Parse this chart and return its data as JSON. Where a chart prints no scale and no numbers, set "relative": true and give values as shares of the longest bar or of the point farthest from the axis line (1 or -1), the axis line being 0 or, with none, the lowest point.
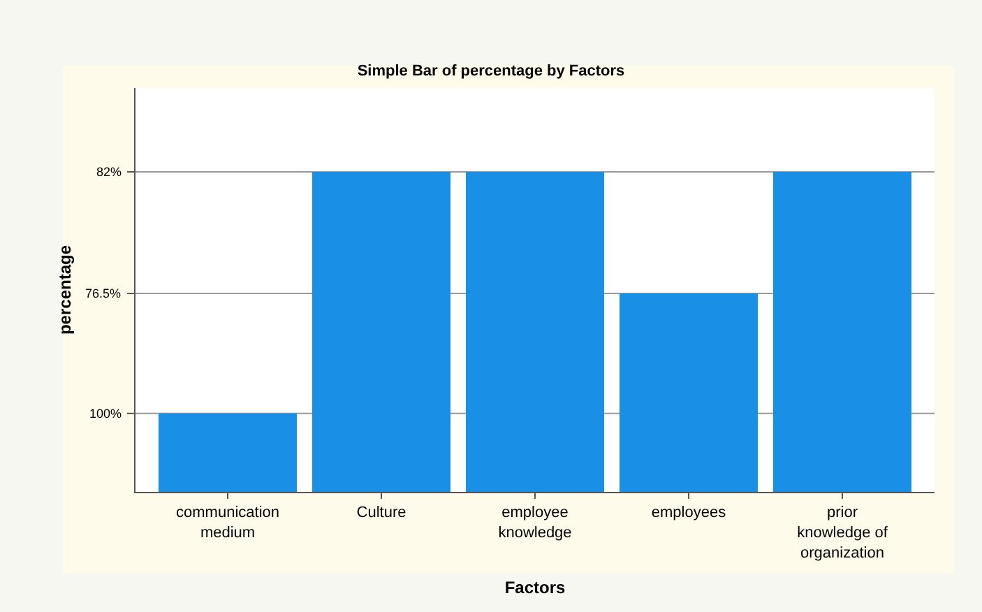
{
  "chart_data": {
    "type": "bar",
    "title": "Simple Bar of percentage by Factors",
    "xlabel": "Factors",
    "ylabel": "percentage",
    "categories": [
      "communication medium",
      "Culture",
      "employee knowledge",
      "employees",
      "prior knowledge of organization"
    ],
    "values": [
      0.245,
      1,
      1,
      0.62,
      1
    ],
    "color": "#1a8fe6",
    "relative": true,
    "ref_lines": [
      {
        "axis": "y",
        "value": 0.245
      },
      {
        "axis": "y",
        "value": 0.62
      },
      {
        "axis": "y",
        "value": 1
      }
    ],
    "annotations": [
      "100%",
      "76.5%",
      "82%"
    ]
  }
}
